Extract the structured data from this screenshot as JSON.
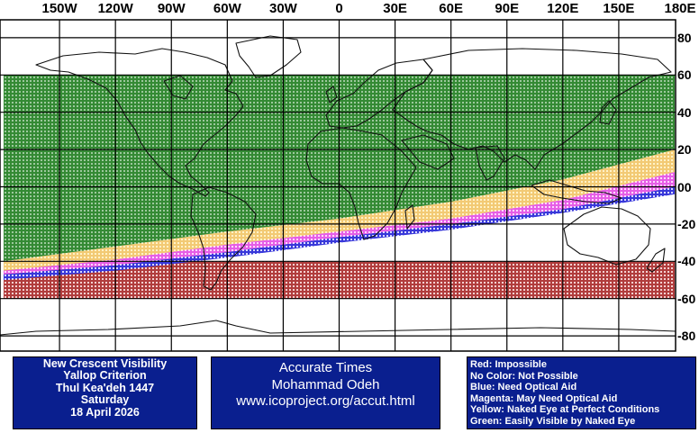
{
  "map": {
    "lon_labels": [
      {
        "lon": -150,
        "label": "150W"
      },
      {
        "lon": -120,
        "label": "120W"
      },
      {
        "lon": -90,
        "label": "90W"
      },
      {
        "lon": -60,
        "label": "60W"
      },
      {
        "lon": -30,
        "label": "30W"
      },
      {
        "lon": 0,
        "label": "0"
      },
      {
        "lon": 30,
        "label": "30E"
      },
      {
        "lon": 60,
        "label": "60E"
      },
      {
        "lon": 90,
        "label": "90E"
      },
      {
        "lon": 120,
        "label": "120E"
      },
      {
        "lon": 150,
        "label": "150E"
      },
      {
        "lon": 180,
        "label": "180E"
      }
    ],
    "lat_labels": [
      {
        "lat": 80,
        "label": "80"
      },
      {
        "lat": 60,
        "label": "60"
      },
      {
        "lat": 40,
        "label": "40"
      },
      {
        "lat": 20,
        "label": "20"
      },
      {
        "lat": 0,
        "label": "00"
      },
      {
        "lat": -20,
        "label": "-20"
      },
      {
        "lat": -40,
        "label": "-40"
      },
      {
        "lat": -60,
        "label": "-60"
      },
      {
        "lat": -80,
        "label": "-80"
      }
    ],
    "zone_colors": {
      "green": "#1a7a1a",
      "yellow": "#f0c060",
      "magenta": "#e040e0",
      "blue": "#1010d0",
      "red": "#a01818"
    },
    "visibility_zones": {
      "green_north_lat": 60,
      "green_south_boundary": [
        [
          -180,
          -40
        ],
        [
          -120,
          -32
        ],
        [
          -60,
          -24
        ],
        [
          0,
          -17
        ],
        [
          60,
          -8
        ],
        [
          120,
          4
        ],
        [
          180,
          20
        ]
      ],
      "yellow_south_boundary": [
        [
          -180,
          -45
        ],
        [
          -120,
          -39
        ],
        [
          -60,
          -31
        ],
        [
          0,
          -24
        ],
        [
          60,
          -17
        ],
        [
          120,
          -7
        ],
        [
          180,
          8
        ]
      ],
      "magenta_south_boundary": [
        [
          -180,
          -47
        ],
        [
          -120,
          -42
        ],
        [
          -60,
          -35
        ],
        [
          0,
          -27
        ],
        [
          60,
          -20
        ],
        [
          120,
          -12
        ],
        [
          180,
          0
        ]
      ],
      "blue_south_boundary": [
        [
          -180,
          -50
        ],
        [
          -120,
          -45
        ],
        [
          -60,
          -38
        ],
        [
          0,
          -30
        ],
        [
          60,
          -23
        ],
        [
          120,
          -14
        ],
        [
          180,
          -4
        ]
      ],
      "red_band": {
        "lat_top": -40,
        "lat_bottom": -60
      }
    }
  },
  "info": {
    "line1": "New Crescent Visibility",
    "line2": "Yallop Criterion",
    "line3": "Thul Kea'deh 1447",
    "line4": "Saturday",
    "line5": "18 April 2026"
  },
  "credit": {
    "line1": "Accurate Times",
    "line2": "Mohammad Odeh",
    "line3": "www.icoproject.org/accut.html"
  },
  "legend": {
    "red": "Red: Impossible",
    "none": "No Color: Not Possible",
    "blue": "Blue: Need Optical Aid",
    "magenta": "Magenta: May Need Optical Aid",
    "yellow": "Yellow: Naked Eye at Perfect Conditions",
    "green": "Green: Easily Visible by Naked Eye"
  }
}
